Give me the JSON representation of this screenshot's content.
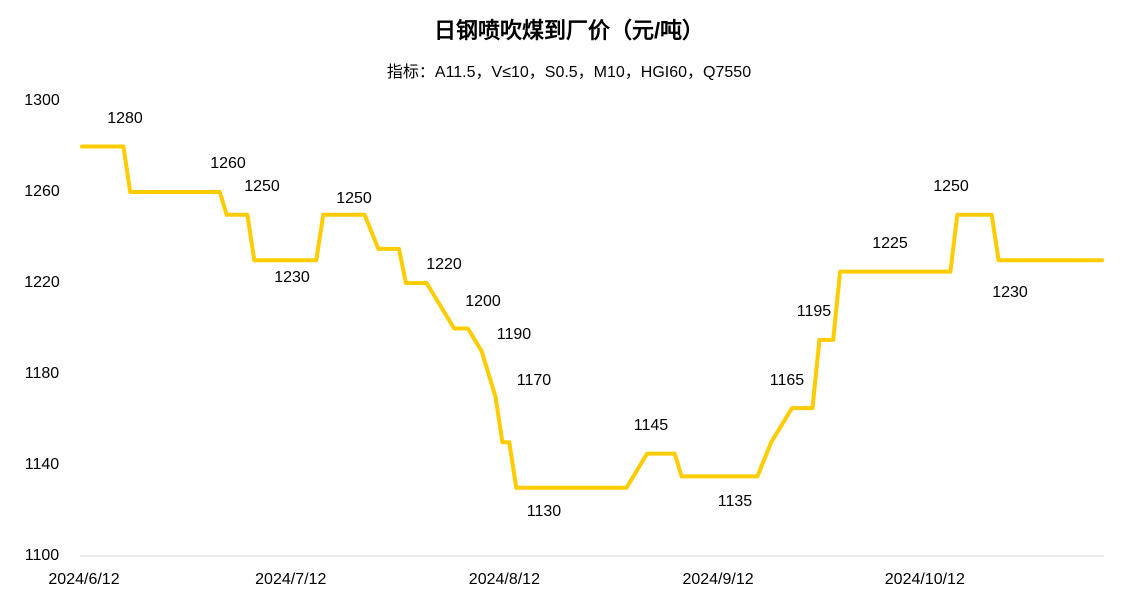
{
  "chart_data": {
    "type": "line",
    "title": "日钢喷吹煤到厂价（元/吨）",
    "subtitle": "指标：A11.5，V≤10，S0.5，M10，HGI60，Q7550",
    "x": [
      "2024/6/12",
      "2024/6/18",
      "2024/6/19",
      "2024/7/2",
      "2024/7/3",
      "2024/7/6",
      "2024/7/7",
      "2024/7/16",
      "2024/7/17",
      "2024/7/23",
      "2024/7/25",
      "2024/7/28",
      "2024/7/29",
      "2024/8/1",
      "2024/8/5",
      "2024/8/7",
      "2024/8/9",
      "2024/8/11",
      "2024/8/12",
      "2024/8/13",
      "2024/8/14",
      "2024/8/30",
      "2024/9/2",
      "2024/9/6",
      "2024/9/7",
      "2024/9/18",
      "2024/9/20",
      "2024/9/23",
      "2024/9/26",
      "2024/9/27",
      "2024/9/29",
      "2024/9/30",
      "2024/10/16",
      "2024/10/17",
      "2024/10/22",
      "2024/10/23",
      "2024/11/7"
    ],
    "series": [
      {
        "name": "日钢喷吹煤到厂价",
        "color": "#FFCC00",
        "values": [
          1280,
          1280,
          1260,
          1260,
          1250,
          1250,
          1230,
          1230,
          1250,
          1250,
          1235,
          1235,
          1220,
          1220,
          1200,
          1200,
          1190,
          1170,
          1150,
          1150,
          1130,
          1130,
          1145,
          1145,
          1135,
          1135,
          1150,
          1165,
          1165,
          1195,
          1195,
          1225,
          1225,
          1250,
          1250,
          1230,
          1230
        ]
      }
    ],
    "xlim": [
      "2024/6/12",
      "2024/11/7"
    ],
    "xticks": [
      "2024/6/12",
      "2024/7/12",
      "2024/8/12",
      "2024/9/12",
      "2024/10/12"
    ],
    "ylim": [
      1100,
      1300
    ],
    "yticks": [
      1100,
      1140,
      1180,
      1220,
      1260,
      1300
    ],
    "grid": false
  }
}
